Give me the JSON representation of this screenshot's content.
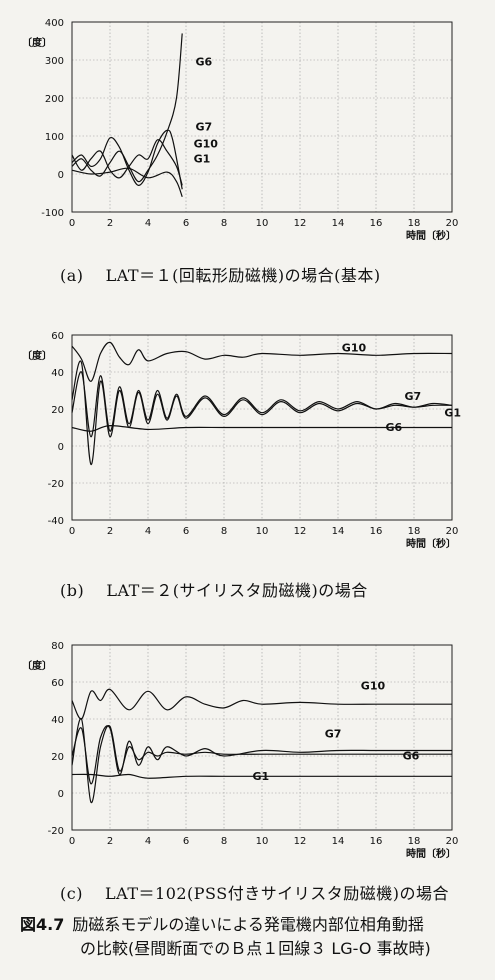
{
  "figure": {
    "number": "図4.7",
    "caption_line1": "励磁系モデルの違いによる発電機内部位相角動揺",
    "caption_line2": "の比較(昼間断面でのＢ点１回線３ LG-O 事故時)"
  },
  "chart_data": [
    {
      "type": "line",
      "caption": "(a)　 LAT＝１(回転形励磁機)の場合(基本)",
      "ylabel": "〔度〕",
      "xlabel": "時間〔秒〕",
      "xlim": [
        0,
        20
      ],
      "ylim": [
        -100,
        400
      ],
      "xticks": [
        0,
        2,
        4,
        6,
        8,
        10,
        12,
        14,
        16,
        18,
        20
      ],
      "yticks": [
        -100,
        0,
        100,
        200,
        300,
        400
      ],
      "grid": true,
      "series": [
        {
          "name": "G6",
          "x": [
            0,
            0.5,
            1,
            1.5,
            2,
            2.5,
            3,
            3.5,
            4,
            4.5,
            5,
            5.5,
            5.8
          ],
          "y": [
            20,
            40,
            10,
            -5,
            30,
            60,
            20,
            -20,
            10,
            50,
            110,
            200,
            370
          ]
        },
        {
          "name": "G7",
          "x": [
            0,
            0.5,
            1,
            1.5,
            2,
            2.5,
            3,
            3.5,
            4,
            4.5,
            5,
            5.3,
            5.8
          ],
          "y": [
            30,
            50,
            20,
            40,
            95,
            70,
            10,
            -30,
            5,
            80,
            115,
            90,
            -40
          ]
        },
        {
          "name": "G10",
          "x": [
            0,
            0.5,
            1,
            1.5,
            2,
            2.5,
            3,
            3.5,
            4,
            4.5,
            5,
            5.5,
            5.8
          ],
          "y": [
            50,
            10,
            40,
            60,
            10,
            -10,
            20,
            50,
            40,
            90,
            60,
            20,
            -30
          ]
        },
        {
          "name": "G1",
          "x": [
            0,
            1,
            2,
            3,
            4,
            5,
            5.5,
            5.8
          ],
          "y": [
            10,
            0,
            5,
            15,
            -10,
            5,
            -20,
            -60
          ]
        }
      ]
    },
    {
      "type": "line",
      "caption": "(b)　 LAT＝２(サイリスタ励磁機)の場合",
      "ylabel": "〔度〕",
      "xlabel": "時間〔秒〕",
      "xlim": [
        0,
        20
      ],
      "ylim": [
        -40,
        60
      ],
      "xticks": [
        0,
        2,
        4,
        6,
        8,
        10,
        12,
        14,
        16,
        18,
        20
      ],
      "yticks": [
        -40,
        -20,
        0,
        20,
        40,
        60
      ],
      "grid": true,
      "series": [
        {
          "name": "G10",
          "x": [
            0,
            0.5,
            1,
            1.5,
            2,
            2.5,
            3,
            3.5,
            4,
            5,
            6,
            7,
            8,
            9,
            10,
            12,
            14,
            16,
            18,
            20
          ],
          "y": [
            54,
            47,
            35,
            50,
            56,
            48,
            44,
            52,
            46,
            50,
            51,
            47,
            49,
            48,
            50,
            49,
            50,
            49,
            50,
            50
          ]
        },
        {
          "name": "G7",
          "x": [
            0,
            0.5,
            1,
            1.5,
            2,
            2.5,
            3,
            3.5,
            4,
            4.5,
            5,
            5.5,
            6,
            7,
            8,
            9,
            10,
            11,
            12,
            13,
            14,
            15,
            16,
            17,
            18,
            19,
            20
          ],
          "y": [
            18,
            40,
            5,
            38,
            8,
            32,
            12,
            30,
            14,
            30,
            15,
            28,
            16,
            27,
            17,
            26,
            18,
            25,
            19,
            24,
            20,
            24,
            20,
            23,
            21,
            23,
            22
          ]
        },
        {
          "name": "G1",
          "x": [
            0,
            0.5,
            1,
            1.5,
            2,
            2.5,
            3,
            3.5,
            4,
            4.5,
            5,
            5.5,
            6,
            7,
            8,
            9,
            10,
            11,
            12,
            13,
            14,
            15,
            16,
            17,
            18,
            19,
            20
          ],
          "y": [
            25,
            45,
            -10,
            35,
            5,
            30,
            10,
            29,
            12,
            28,
            14,
            27,
            15,
            26,
            16,
            25,
            17,
            24,
            18,
            23,
            19,
            23,
            20,
            22,
            21,
            22,
            22
          ]
        },
        {
          "name": "G6",
          "x": [
            0,
            1,
            2,
            4,
            6,
            8,
            10,
            12,
            14,
            16,
            18,
            20
          ],
          "y": [
            10,
            8,
            11,
            9,
            10,
            10,
            10,
            10,
            10,
            10,
            10,
            10
          ]
        }
      ]
    },
    {
      "type": "line",
      "caption": "(c)　 LAT＝102(PSS付きサイリスタ励磁機)の場合",
      "ylabel": "〔度〕",
      "xlabel": "時間〔秒〕",
      "xlim": [
        0,
        20
      ],
      "ylim": [
        -20,
        80
      ],
      "xticks": [
        0,
        2,
        4,
        6,
        8,
        10,
        12,
        14,
        16,
        18,
        20
      ],
      "yticks": [
        -20,
        0,
        20,
        40,
        60,
        80
      ],
      "grid": true,
      "series": [
        {
          "name": "G10",
          "x": [
            0,
            0.5,
            1,
            1.5,
            2,
            3,
            4,
            5,
            6,
            7,
            8,
            9,
            10,
            12,
            14,
            16,
            18,
            20
          ],
          "y": [
            50,
            40,
            55,
            50,
            56,
            45,
            55,
            45,
            52,
            48,
            46,
            50,
            48,
            49,
            48,
            48,
            48,
            48
          ]
        },
        {
          "name": "G7",
          "x": [
            0,
            0.5,
            1,
            1.5,
            2,
            2.5,
            3,
            3.5,
            4,
            4.5,
            5,
            6,
            7,
            8,
            10,
            12,
            14,
            16,
            18,
            20
          ],
          "y": [
            20,
            35,
            5,
            30,
            35,
            10,
            28,
            15,
            25,
            18,
            25,
            20,
            24,
            20,
            23,
            22,
            23,
            23,
            23,
            23
          ]
        },
        {
          "name": "G6",
          "x": [
            0,
            0.5,
            1,
            1.5,
            2,
            2.5,
            3,
            3.5,
            4,
            4.5,
            5,
            6,
            7,
            8,
            10,
            12,
            14,
            16,
            18,
            20
          ],
          "y": [
            15,
            40,
            -5,
            25,
            36,
            12,
            25,
            18,
            22,
            20,
            22,
            21,
            22,
            21,
            21,
            21,
            21,
            21,
            21,
            21
          ]
        },
        {
          "name": "G1",
          "x": [
            0,
            1,
            2,
            3,
            4,
            6,
            8,
            10,
            12,
            14,
            16,
            18,
            20
          ],
          "y": [
            10,
            10,
            9,
            10,
            8,
            9,
            9,
            9,
            9,
            9,
            9,
            9,
            9
          ]
        }
      ]
    }
  ]
}
